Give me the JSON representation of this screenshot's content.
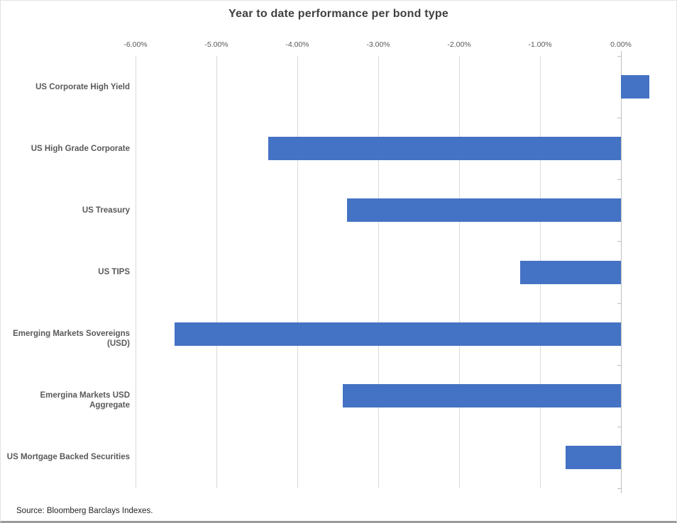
{
  "title": "Year to date performance per bond type",
  "source_note": "Source: Bloomberg Barclays Indexes.",
  "chart_data": {
    "type": "bar",
    "orientation": "horizontal",
    "title": "Year to date performance per bond type",
    "categories": [
      "US Corporate High Yield",
      "US High Grade Corporate",
      "US Treasury",
      "US TIPS",
      "Emerging Markets Sovereigns (USD)",
      "Emergina Markets USD Aggregate",
      "US Mortgage Backed Securities"
    ],
    "values": [
      0.35,
      -4.36,
      -3.39,
      -1.25,
      -5.52,
      -3.44,
      -0.68
    ],
    "value_unit": "percent",
    "xlabel": "",
    "ylabel": "",
    "xlim": [
      -6.0,
      0.5
    ],
    "x_tick_values": [
      -6,
      -5,
      -4,
      -3,
      -2,
      -1,
      0
    ],
    "x_tick_labels": [
      "-6.00%",
      "-5.00%",
      "-4.00%",
      "-3.00%",
      "-2.00%",
      "-1.00%",
      "0.00%"
    ],
    "tick_labels_position": "top",
    "grid": true,
    "legend": false,
    "bar_color": "#4472C4",
    "gridline_color": "#D9D9D9",
    "axis_color": "#BFBFBF",
    "title_color": "#404040",
    "label_color": "#595959"
  }
}
